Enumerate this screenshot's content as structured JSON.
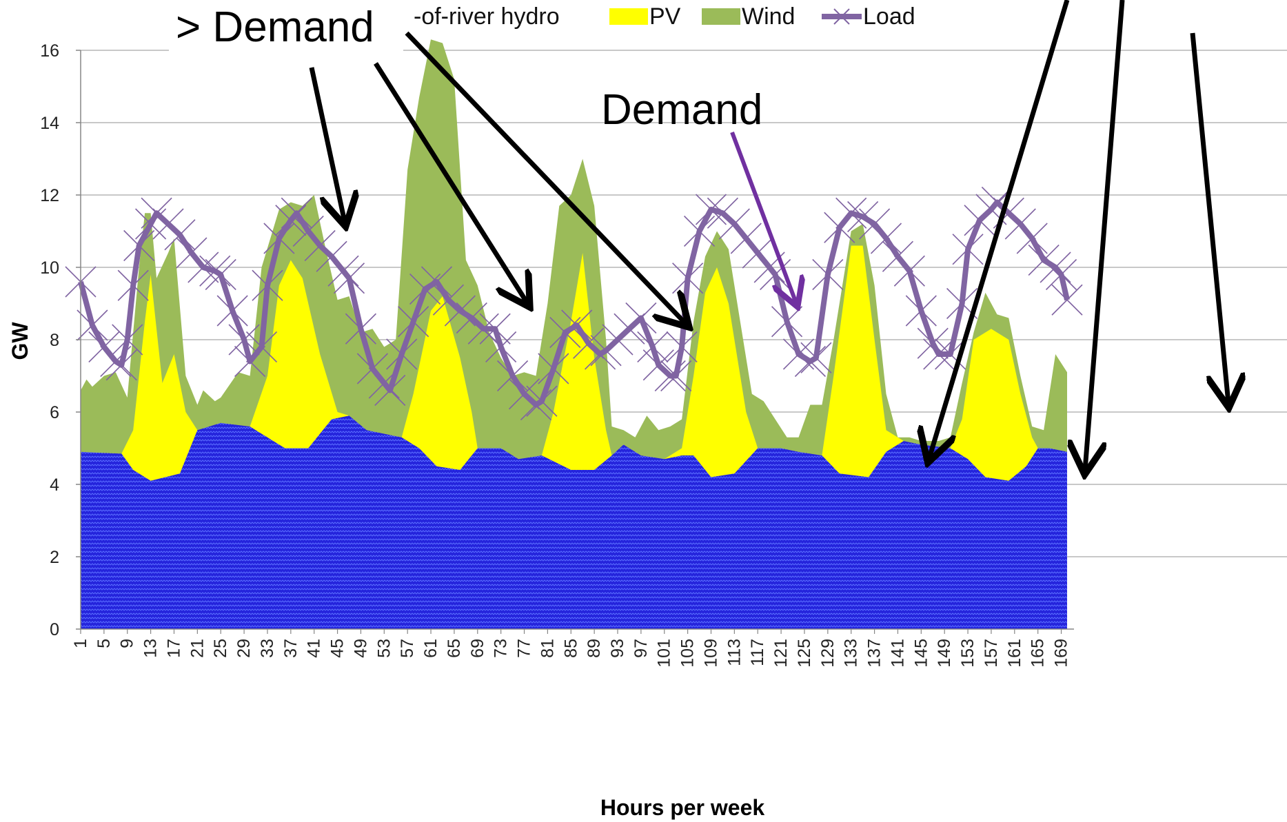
{
  "chart_data": {
    "type": "area",
    "title": "",
    "xlabel": "Hours per week",
    "ylabel": "GW",
    "ylim": [
      0,
      16
    ],
    "yticks": [
      0,
      2,
      4,
      6,
      8,
      10,
      12,
      14,
      16
    ],
    "xticks": [
      1,
      5,
      9,
      13,
      17,
      21,
      25,
      29,
      33,
      37,
      41,
      45,
      49,
      53,
      57,
      61,
      65,
      69,
      73,
      77,
      81,
      85,
      89,
      93,
      97,
      101,
      105,
      109,
      113,
      117,
      121,
      125,
      129,
      133,
      137,
      141,
      145,
      149,
      153,
      157,
      161,
      165,
      169
    ],
    "xlim": [
      1,
      170
    ],
    "grid": "horizontal",
    "legend": {
      "position": "top",
      "entries": [
        {
          "label": "-of-river hydro",
          "color": "#2e2ee0"
        },
        {
          "label": "PV",
          "color": "#ffff00"
        },
        {
          "label": "Wind",
          "color": "#9bbb59"
        },
        {
          "label": "Load",
          "color": "#7f5fa5"
        }
      ]
    },
    "colors": {
      "hydro": "#2424dc",
      "pv": "#ffff00",
      "wind": "#9bbb59",
      "load": "#8064a2",
      "annotation": "#000000",
      "demand_arrow": "#7030a0"
    },
    "series": [
      {
        "name": "-of-river hydro",
        "points": [
          [
            1,
            4.9
          ],
          [
            8,
            4.85
          ],
          [
            10,
            4.4
          ],
          [
            13,
            4.1
          ],
          [
            18,
            4.3
          ],
          [
            21,
            5.5
          ],
          [
            25,
            5.7
          ],
          [
            30,
            5.6
          ],
          [
            33,
            5.3
          ],
          [
            36,
            5.0
          ],
          [
            40,
            5.0
          ],
          [
            44,
            5.8
          ],
          [
            47,
            5.9
          ],
          [
            50,
            5.5
          ],
          [
            56,
            5.3
          ],
          [
            59,
            5.0
          ],
          [
            62,
            4.5
          ],
          [
            66,
            4.4
          ],
          [
            69,
            5.0
          ],
          [
            73,
            5.0
          ],
          [
            76,
            4.7
          ],
          [
            80,
            4.8
          ],
          [
            85,
            4.4
          ],
          [
            89,
            4.4
          ],
          [
            92,
            4.8
          ],
          [
            94,
            5.1
          ],
          [
            97,
            4.8
          ],
          [
            101,
            4.7
          ],
          [
            104,
            4.8
          ],
          [
            106,
            4.8
          ],
          [
            109,
            4.2
          ],
          [
            113,
            4.3
          ],
          [
            117,
            5.0
          ],
          [
            121,
            5.0
          ],
          [
            124,
            4.9
          ],
          [
            128,
            4.8
          ],
          [
            131,
            4.3
          ],
          [
            136,
            4.2
          ],
          [
            139,
            4.9
          ],
          [
            142,
            5.2
          ],
          [
            145,
            5.1
          ],
          [
            150,
            5.0
          ],
          [
            153,
            4.7
          ],
          [
            156,
            4.2
          ],
          [
            160,
            4.1
          ],
          [
            163,
            4.5
          ],
          [
            165,
            5.0
          ],
          [
            167,
            5.0
          ],
          [
            170,
            4.9
          ]
        ]
      },
      {
        "name": "PV",
        "points": [
          [
            1,
            4.9
          ],
          [
            8,
            4.85
          ],
          [
            10,
            5.5
          ],
          [
            12,
            8.5
          ],
          [
            13,
            9.8
          ],
          [
            15,
            6.8
          ],
          [
            17,
            7.6
          ],
          [
            19,
            6.0
          ],
          [
            21,
            5.5
          ],
          [
            25,
            5.7
          ],
          [
            30,
            5.6
          ],
          [
            33,
            7.0
          ],
          [
            35,
            9.5
          ],
          [
            37,
            10.2
          ],
          [
            39,
            9.7
          ],
          [
            42,
            7.6
          ],
          [
            45,
            6.0
          ],
          [
            47,
            5.9
          ],
          [
            50,
            5.5
          ],
          [
            56,
            5.3
          ],
          [
            58,
            6.5
          ],
          [
            61,
            8.8
          ],
          [
            63,
            9.2
          ],
          [
            66,
            7.5
          ],
          [
            68,
            6.0
          ],
          [
            69,
            5.0
          ],
          [
            73,
            5.0
          ],
          [
            76,
            4.7
          ],
          [
            80,
            4.8
          ],
          [
            82,
            6.0
          ],
          [
            85,
            8.5
          ],
          [
            87,
            10.4
          ],
          [
            89,
            7.5
          ],
          [
            91,
            5.5
          ],
          [
            92,
            4.8
          ],
          [
            94,
            5.1
          ],
          [
            97,
            4.8
          ],
          [
            101,
            4.7
          ],
          [
            104,
            5.0
          ],
          [
            106,
            7.0
          ],
          [
            108,
            9.3
          ],
          [
            110,
            10.0
          ],
          [
            112,
            9.0
          ],
          [
            115,
            6.0
          ],
          [
            117,
            5.0
          ],
          [
            121,
            5.0
          ],
          [
            124,
            4.9
          ],
          [
            128,
            4.8
          ],
          [
            130,
            7.0
          ],
          [
            133,
            10.6
          ],
          [
            135,
            10.6
          ],
          [
            137,
            8.0
          ],
          [
            139,
            5.5
          ],
          [
            142,
            5.2
          ],
          [
            145,
            5.1
          ],
          [
            150,
            5.0
          ],
          [
            152,
            5.8
          ],
          [
            154,
            8.0
          ],
          [
            157,
            8.3
          ],
          [
            160,
            8.0
          ],
          [
            162,
            6.5
          ],
          [
            164,
            5.3
          ],
          [
            165,
            5.0
          ],
          [
            167,
            5.0
          ],
          [
            170,
            4.9
          ]
        ]
      },
      {
        "name": "Wind",
        "points": [
          [
            1,
            6.6
          ],
          [
            2,
            6.9
          ],
          [
            3,
            6.7
          ],
          [
            5,
            7.0
          ],
          [
            7,
            7.1
          ],
          [
            9,
            6.4
          ],
          [
            11,
            10.0
          ],
          [
            12,
            11.5
          ],
          [
            13,
            11.5
          ],
          [
            14,
            9.7
          ],
          [
            16,
            10.4
          ],
          [
            17,
            10.8
          ],
          [
            19,
            7.0
          ],
          [
            21,
            6.2
          ],
          [
            22,
            6.6
          ],
          [
            24,
            6.3
          ],
          [
            25,
            6.4
          ],
          [
            28,
            7.1
          ],
          [
            30,
            7.0
          ],
          [
            32,
            10.0
          ],
          [
            35,
            11.6
          ],
          [
            37,
            11.8
          ],
          [
            39,
            11.7
          ],
          [
            41,
            12.0
          ],
          [
            43,
            10.5
          ],
          [
            45,
            9.1
          ],
          [
            47,
            9.2
          ],
          [
            49,
            8.2
          ],
          [
            51,
            8.3
          ],
          [
            53,
            7.8
          ],
          [
            55,
            8.0
          ],
          [
            57,
            12.7
          ],
          [
            59,
            14.7
          ],
          [
            61,
            16.3
          ],
          [
            63,
            16.2
          ],
          [
            65,
            15.2
          ],
          [
            67,
            10.2
          ],
          [
            69,
            9.5
          ],
          [
            71,
            8.2
          ],
          [
            73,
            7.5
          ],
          [
            75,
            7.0
          ],
          [
            77,
            7.1
          ],
          [
            79,
            7.0
          ],
          [
            81,
            9.0
          ],
          [
            83,
            11.7
          ],
          [
            85,
            12.0
          ],
          [
            87,
            13.0
          ],
          [
            89,
            11.7
          ],
          [
            91,
            8.0
          ],
          [
            92,
            5.6
          ],
          [
            94,
            5.5
          ],
          [
            96,
            5.3
          ],
          [
            98,
            5.9
          ],
          [
            100,
            5.5
          ],
          [
            102,
            5.6
          ],
          [
            104,
            5.8
          ],
          [
            106,
            8.5
          ],
          [
            108,
            10.3
          ],
          [
            110,
            11.0
          ],
          [
            112,
            10.5
          ],
          [
            114,
            8.5
          ],
          [
            116,
            6.5
          ],
          [
            118,
            6.3
          ],
          [
            120,
            5.8
          ],
          [
            122,
            5.3
          ],
          [
            124,
            5.3
          ],
          [
            126,
            6.2
          ],
          [
            128,
            6.2
          ],
          [
            130,
            8.0
          ],
          [
            133,
            11.0
          ],
          [
            135,
            11.2
          ],
          [
            137,
            9.5
          ],
          [
            139,
            6.5
          ],
          [
            141,
            5.3
          ],
          [
            143,
            5.3
          ],
          [
            145,
            5.2
          ],
          [
            148,
            5.2
          ],
          [
            150,
            5.3
          ],
          [
            152,
            6.8
          ],
          [
            154,
            8.2
          ],
          [
            156,
            9.3
          ],
          [
            158,
            8.7
          ],
          [
            160,
            8.6
          ],
          [
            162,
            7.0
          ],
          [
            164,
            5.6
          ],
          [
            166,
            5.5
          ],
          [
            168,
            7.6
          ],
          [
            170,
            7.1
          ]
        ]
      },
      {
        "name": "Load",
        "points": [
          [
            1,
            9.6
          ],
          [
            3,
            8.4
          ],
          [
            5,
            7.8
          ],
          [
            7,
            7.4
          ],
          [
            8,
            7.3
          ],
          [
            9,
            8.0
          ],
          [
            10,
            9.5
          ],
          [
            11,
            10.6
          ],
          [
            13,
            11.2
          ],
          [
            14,
            11.5
          ],
          [
            16,
            11.2
          ],
          [
            18,
            10.9
          ],
          [
            20,
            10.4
          ],
          [
            22,
            10.0
          ],
          [
            24,
            9.9
          ],
          [
            25,
            9.8
          ],
          [
            27,
            8.8
          ],
          [
            29,
            8.0
          ],
          [
            30,
            7.4
          ],
          [
            32,
            7.8
          ],
          [
            33,
            9.5
          ],
          [
            35,
            10.8
          ],
          [
            37,
            11.3
          ],
          [
            38,
            11.5
          ],
          [
            40,
            11.0
          ],
          [
            42,
            10.6
          ],
          [
            44,
            10.3
          ],
          [
            46,
            9.9
          ],
          [
            47,
            9.7
          ],
          [
            49,
            8.3
          ],
          [
            51,
            7.2
          ],
          [
            53,
            6.8
          ],
          [
            54,
            6.6
          ],
          [
            56,
            7.6
          ],
          [
            58,
            8.5
          ],
          [
            60,
            9.4
          ],
          [
            62,
            9.6
          ],
          [
            64,
            9.1
          ],
          [
            66,
            8.8
          ],
          [
            68,
            8.6
          ],
          [
            70,
            8.3
          ],
          [
            72,
            8.3
          ],
          [
            73,
            7.8
          ],
          [
            75,
            7.0
          ],
          [
            77,
            6.5
          ],
          [
            79,
            6.2
          ],
          [
            80,
            6.3
          ],
          [
            82,
            7.2
          ],
          [
            84,
            8.2
          ],
          [
            86,
            8.4
          ],
          [
            88,
            7.9
          ],
          [
            90,
            7.6
          ],
          [
            91,
            7.7
          ],
          [
            93,
            8.0
          ],
          [
            95,
            8.3
          ],
          [
            97,
            8.6
          ],
          [
            99,
            7.8
          ],
          [
            100,
            7.3
          ],
          [
            102,
            7.0
          ],
          [
            103,
            7.0
          ],
          [
            104,
            7.8
          ],
          [
            105,
            9.7
          ],
          [
            107,
            11.0
          ],
          [
            109,
            11.6
          ],
          [
            111,
            11.5
          ],
          [
            113,
            11.2
          ],
          [
            115,
            10.8
          ],
          [
            117,
            10.4
          ],
          [
            119,
            10.0
          ],
          [
            120,
            9.8
          ],
          [
            122,
            8.5
          ],
          [
            124,
            7.6
          ],
          [
            126,
            7.4
          ],
          [
            127,
            7.5
          ],
          [
            129,
            9.8
          ],
          [
            131,
            11.1
          ],
          [
            133,
            11.5
          ],
          [
            135,
            11.4
          ],
          [
            137,
            11.2
          ],
          [
            139,
            10.8
          ],
          [
            141,
            10.3
          ],
          [
            143,
            9.9
          ],
          [
            145,
            8.8
          ],
          [
            147,
            7.9
          ],
          [
            148,
            7.6
          ],
          [
            150,
            7.6
          ],
          [
            152,
            9.0
          ],
          [
            153,
            10.5
          ],
          [
            155,
            11.3
          ],
          [
            157,
            11.6
          ],
          [
            158,
            11.8
          ],
          [
            160,
            11.5
          ],
          [
            162,
            11.2
          ],
          [
            164,
            10.8
          ],
          [
            166,
            10.2
          ],
          [
            168,
            10.0
          ],
          [
            169,
            9.8
          ],
          [
            170,
            9.1
          ]
        ]
      }
    ],
    "annotations": [
      {
        "text": "> Demand"
      },
      {
        "text": "Demand"
      }
    ]
  }
}
